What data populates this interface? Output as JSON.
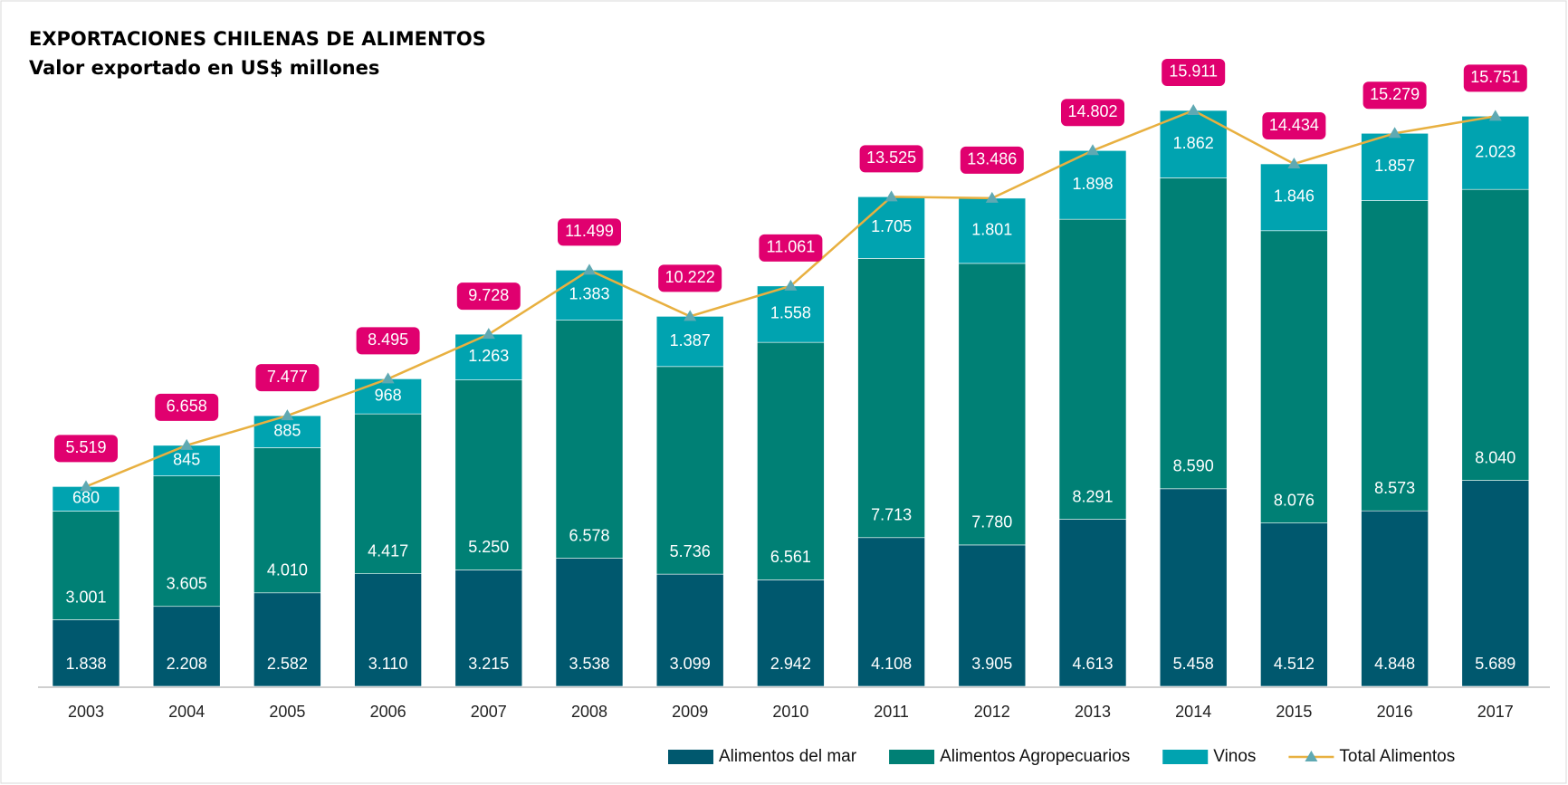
{
  "chart_data": {
    "type": "bar",
    "stacked": true,
    "title": "EXPORTACIONES CHILENAS DE ALIMENTOS",
    "subtitle": "Valor exportado en US$ millones",
    "categories": [
      "2003",
      "2004",
      "2005",
      "2006",
      "2007",
      "2008",
      "2009",
      "2010",
      "2011",
      "2012",
      "2013",
      "2014",
      "2015",
      "2016",
      "2017"
    ],
    "series": [
      {
        "name": "Alimentos del mar",
        "color": "#00586e",
        "values": [
          1838,
          2208,
          2582,
          3110,
          3215,
          3538,
          3099,
          2942,
          4108,
          3905,
          4613,
          5458,
          4512,
          4848,
          5689
        ],
        "value_labels": [
          "1.838",
          "2.208",
          "2.582",
          "3.110",
          "3.215",
          "3.538",
          "3.099",
          "2.942",
          "4.108",
          "3.905",
          "4.613",
          "5.458",
          "4.512",
          "4.848",
          "5.689"
        ]
      },
      {
        "name": "Alimentos Agropecuarios",
        "color": "#008075",
        "values": [
          3001,
          3605,
          4010,
          4417,
          5250,
          6578,
          5736,
          6561,
          7713,
          7780,
          8291,
          8590,
          8076,
          8573,
          8040
        ],
        "value_labels": [
          "3.001",
          "3.605",
          "4.010",
          "4.417",
          "5.250",
          "6.578",
          "5.736",
          "6.561",
          "7.713",
          "7.780",
          "8.291",
          "8.590",
          "8.076",
          "8.573",
          "8.040"
        ]
      },
      {
        "name": "Vinos",
        "color": "#00a3b0",
        "values": [
          680,
          845,
          885,
          968,
          1263,
          1383,
          1387,
          1558,
          1705,
          1801,
          1898,
          1862,
          1846,
          1857,
          2023
        ],
        "value_labels": [
          "680",
          "845",
          "885",
          "968",
          "1.263",
          "1.383",
          "1.387",
          "1.558",
          "1.705",
          "1.801",
          "1.898",
          "1.862",
          "1.846",
          "1.857",
          "2.023"
        ]
      },
      {
        "name": "Total Alimentos",
        "type": "line",
        "color": "#e8b040",
        "marker_color": "#5fa9b3",
        "label_color": "#e0006f",
        "values": [
          5519,
          6658,
          7477,
          8495,
          9728,
          11499,
          10222,
          11061,
          13525,
          13486,
          14802,
          15911,
          14434,
          15279,
          15751
        ],
        "value_labels": [
          "5.519",
          "6.658",
          "7.477",
          "8.495",
          "9.728",
          "11.499",
          "10.222",
          "11.061",
          "13.525",
          "13.486",
          "14.802",
          "15.911",
          "14.434",
          "15.279",
          "15.751"
        ]
      }
    ]
  }
}
